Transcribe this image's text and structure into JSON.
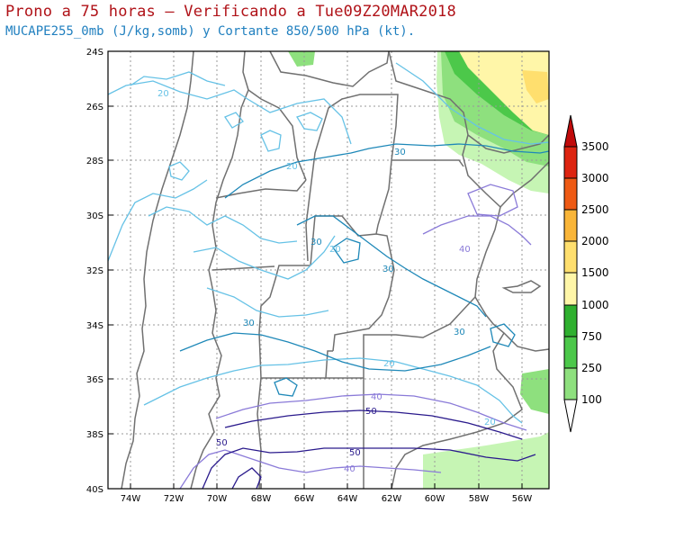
{
  "title": {
    "line1": "Prono a 75 horas — Verificando a Tue09Z20MAR2018",
    "line2": "MUCAPE255_0mb (J/kg,somb) y Cortante 850/500 hPa (kt)."
  },
  "map": {
    "lat_ticks": [
      "24S",
      "26S",
      "28S",
      "30S",
      "32S",
      "34S",
      "36S",
      "38S",
      "40S"
    ],
    "lon_ticks": [
      "74W",
      "72W",
      "70W",
      "68W",
      "66W",
      "64W",
      "62W",
      "60W",
      "58W",
      "56W"
    ],
    "lat_range": [
      -40,
      -24
    ],
    "lon_range": [
      -75,
      -55
    ]
  },
  "colorbar": {
    "labels": [
      "100",
      "250",
      "750",
      "1000",
      "1500",
      "2000",
      "2500",
      "3000",
      "3500"
    ],
    "colors": [
      "#c6f5b4",
      "#8ee07e",
      "#4cc84a",
      "#2fb02f",
      "#fff6a8",
      "#ffdf6e",
      "#f9b538",
      "#f58a1e",
      "#ee5a14",
      "#dd2410",
      "#c00a0a"
    ]
  },
  "contour_labels": {
    "c20_a": "20",
    "c20_b": "20",
    "c20_c": "20",
    "c20_d": "20",
    "c20_e": "20",
    "c30_a": "30",
    "c30_b": "30",
    "c30_c": "30",
    "c30_d": "30",
    "c40_a": "40",
    "c40_b": "40",
    "c40_c": "40",
    "c50_a": "50",
    "c50_b": "50",
    "c50_c": "50"
  },
  "colors": {
    "c20": "#66c2e6",
    "c30": "#1e88b8",
    "c40": "#8a7ad8",
    "c50": "#2a1a8c",
    "border": "#707070",
    "grid": "#999999"
  }
}
